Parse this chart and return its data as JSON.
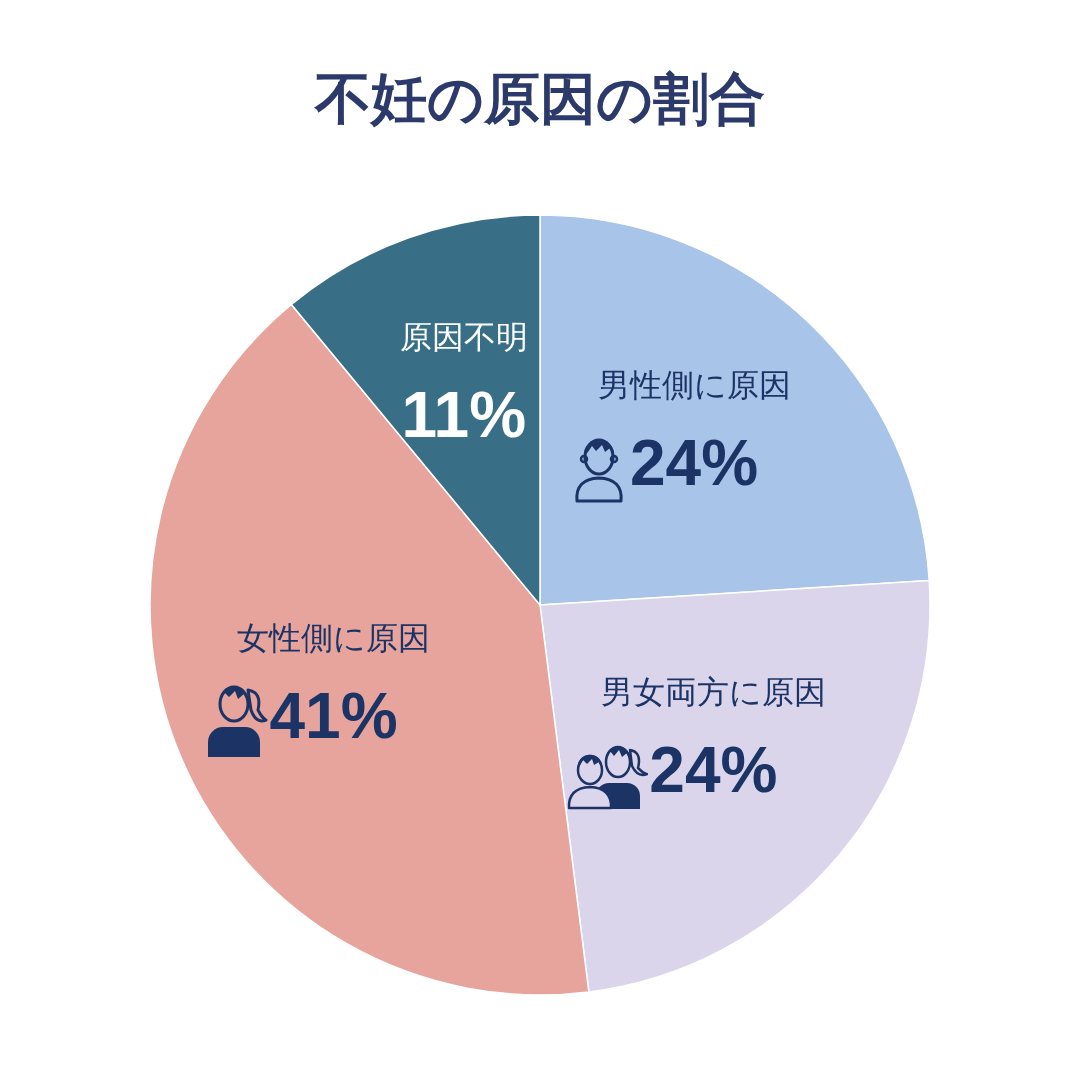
{
  "chart_data": {
    "type": "pie",
    "title": "不妊の原因の割合",
    "categories": [
      "男性側に原因",
      "男女両方に原因",
      "女性側に原因",
      "原因不明"
    ],
    "values": [
      24,
      24,
      41,
      11
    ],
    "value_labels": [
      "24%",
      "24%",
      "41%",
      "11%"
    ],
    "colors": [
      "#a9c4e9",
      "#dad5ea",
      "#e6a49d",
      "#386f86"
    ]
  }
}
